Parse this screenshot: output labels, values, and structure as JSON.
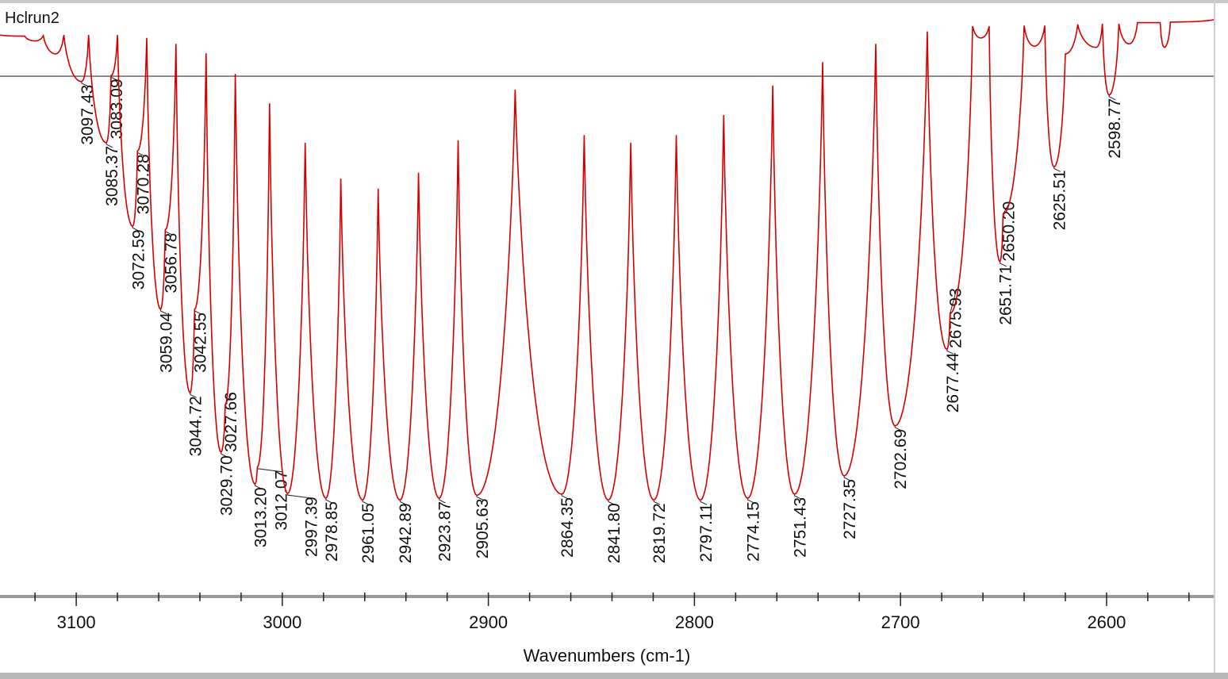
{
  "chart_data": {
    "type": "line",
    "title": "Hclrun2",
    "xlabel": "Wavenumbers (cm-1)",
    "ylabel": "",
    "xlim": [
      3137,
      2548
    ],
    "x_reversed": true,
    "ylim": [
      0,
      100
    ],
    "y_axis_visible": false,
    "grid": false,
    "line_color": "#d40000",
    "reference_line": {
      "y": 88.4,
      "color": "#333333"
    },
    "x_ticks": [
      3100,
      3000,
      2900,
      2800,
      2700,
      2600
    ],
    "x_tick_labels": [
      "3100",
      "3000",
      "2900",
      "2800",
      "2700",
      "2600"
    ],
    "x_minor_step": 20,
    "spectrum_points": [
      [
        3137,
        95.4
      ],
      [
        3125,
        95.2
      ],
      [
        3120,
        94.4
      ],
      [
        3116,
        95.3
      ],
      [
        3110,
        92.2
      ],
      [
        3106,
        95.4
      ],
      [
        3097.43,
        87.5
      ],
      [
        3094,
        95.4
      ],
      [
        3085.37,
        77.1
      ],
      [
        3083.09,
        88.5
      ],
      [
        3080,
        95.4
      ],
      [
        3072.59,
        62.9
      ],
      [
        3070.28,
        75.7
      ],
      [
        3065.8,
        94.9
      ],
      [
        3059.04,
        48.8
      ],
      [
        3056.78,
        62.3
      ],
      [
        3051.6,
        93.9
      ],
      [
        3044.72,
        34.6
      ],
      [
        3042.55,
        48.8
      ],
      [
        3037,
        92.3
      ],
      [
        3029.7,
        24.5
      ],
      [
        3027.66,
        32.6
      ],
      [
        3022.8,
        88.8
      ],
      [
        3013.2,
        19.1
      ],
      [
        3012.07,
        22.0
      ],
      [
        3006.2,
        83.8
      ],
      [
        2997.39,
        17.5
      ],
      [
        2988.9,
        77.1
      ],
      [
        2978.85,
        16.7
      ],
      [
        2971.6,
        71.0
      ],
      [
        2961.05,
        16.4
      ],
      [
        2953.5,
        69.3
      ],
      [
        2942.89,
        16.4
      ],
      [
        2933.9,
        72.0
      ],
      [
        2923.87,
        16.7
      ],
      [
        2914.7,
        77.5
      ],
      [
        2905.63,
        17.2
      ],
      [
        2887,
        86.1
      ],
      [
        2864.35,
        17.4
      ],
      [
        2853.5,
        78.4
      ],
      [
        2841.8,
        16.4
      ],
      [
        2830.9,
        77.1
      ],
      [
        2819.72,
        16.4
      ],
      [
        2808.8,
        78.4
      ],
      [
        2797.11,
        16.4
      ],
      [
        2785.8,
        81.8
      ],
      [
        2774.15,
        16.7
      ],
      [
        2762,
        86.8
      ],
      [
        2751.43,
        17.4
      ],
      [
        2737.8,
        90.8
      ],
      [
        2727.35,
        20.5
      ],
      [
        2712,
        93.9
      ],
      [
        2702.69,
        29.0
      ],
      [
        2687,
        96.0
      ],
      [
        2677.44,
        42.0
      ],
      [
        2675.93,
        48.1
      ],
      [
        2665,
        96.9
      ],
      [
        2661,
        94.9
      ],
      [
        2657,
        96.9
      ],
      [
        2651.71,
        56.9
      ],
      [
        2650.2,
        65.0
      ],
      [
        2640,
        97.0
      ],
      [
        2635,
        93.5
      ],
      [
        2630,
        97.0
      ],
      [
        2625.51,
        73.0
      ],
      [
        2620,
        92.2
      ],
      [
        2614,
        97.2
      ],
      [
        2605,
        93.3
      ],
      [
        2602,
        97.3
      ],
      [
        2598.77,
        85.2
      ],
      [
        2594,
        97.3
      ],
      [
        2589,
        93.9
      ],
      [
        2585,
        97.5
      ],
      [
        2574,
        97.5
      ],
      [
        2572,
        93.3
      ],
      [
        2569,
        97.6
      ],
      [
        2548,
        98.0
      ]
    ],
    "peak_labels": [
      {
        "x": 3097.43,
        "y": 87.5,
        "label": "3097.43"
      },
      {
        "x": 3085.37,
        "y": 77.1,
        "label": "3085.37"
      },
      {
        "x": 3083.09,
        "y": 88.5,
        "label": "3083.09"
      },
      {
        "x": 3072.59,
        "y": 62.9,
        "label": "3072.59"
      },
      {
        "x": 3070.28,
        "y": 75.7,
        "label": "3070.28"
      },
      {
        "x": 3059.04,
        "y": 48.8,
        "label": "3059.04"
      },
      {
        "x": 3056.78,
        "y": 62.3,
        "label": "3056.78"
      },
      {
        "x": 3044.72,
        "y": 34.6,
        "label": "3044.72"
      },
      {
        "x": 3042.55,
        "y": 48.8,
        "label": "3042.55"
      },
      {
        "x": 3029.7,
        "y": 24.5,
        "label": "3029.70"
      },
      {
        "x": 3027.66,
        "y": 32.6,
        "label": "3027.66"
      },
      {
        "x": 3013.2,
        "y": 19.1,
        "label": "3013.20"
      },
      {
        "x": 3012.07,
        "y": 22.0,
        "label": "3012.07"
      },
      {
        "x": 2997.39,
        "y": 17.5,
        "label": "2997.39"
      },
      {
        "x": 2978.85,
        "y": 16.7,
        "label": "2978.85"
      },
      {
        "x": 2961.05,
        "y": 16.4,
        "label": "2961.05"
      },
      {
        "x": 2942.89,
        "y": 16.4,
        "label": "2942.89"
      },
      {
        "x": 2923.87,
        "y": 16.7,
        "label": "2923.87"
      },
      {
        "x": 2905.63,
        "y": 17.2,
        "label": "2905.63"
      },
      {
        "x": 2864.35,
        "y": 17.4,
        "label": "2864.35"
      },
      {
        "x": 2841.8,
        "y": 16.4,
        "label": "2841.80"
      },
      {
        "x": 2819.72,
        "y": 16.4,
        "label": "2819.72"
      },
      {
        "x": 2797.11,
        "y": 16.4,
        "label": "2797.11"
      },
      {
        "x": 2774.15,
        "y": 16.7,
        "label": "2774.15"
      },
      {
        "x": 2751.43,
        "y": 17.4,
        "label": "2751.43"
      },
      {
        "x": 2727.35,
        "y": 20.5,
        "label": "2727.35"
      },
      {
        "x": 2702.69,
        "y": 29.0,
        "label": "2702.69"
      },
      {
        "x": 2677.44,
        "y": 42.0,
        "label": "2677.44"
      },
      {
        "x": 2675.93,
        "y": 48.1,
        "label": "2675.93"
      },
      {
        "x": 2651.71,
        "y": 56.9,
        "label": "2651.71"
      },
      {
        "x": 2650.2,
        "y": 65.0,
        "label": "2650.20"
      },
      {
        "x": 2625.51,
        "y": 73.0,
        "label": "2625.51"
      },
      {
        "x": 2598.77,
        "y": 85.2,
        "label": "2598.77"
      }
    ]
  }
}
